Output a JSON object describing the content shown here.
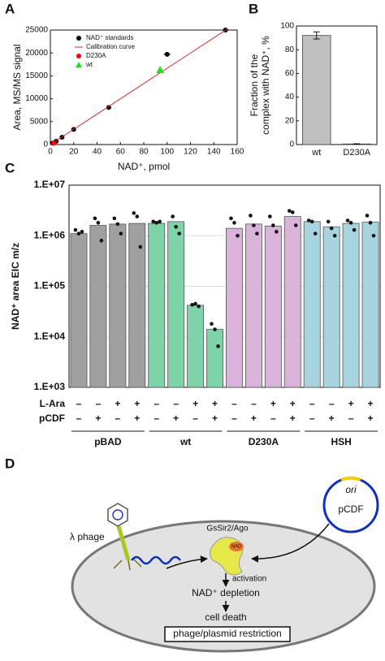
{
  "panels": [
    "A",
    "B",
    "C",
    "D"
  ],
  "chart_data": [
    {
      "type": "scatter",
      "xlabel": "NAD⁺, pmol",
      "ylabel": "Area, MS/MS signal",
      "xlim": [
        0,
        160
      ],
      "xticks": [
        0,
        20,
        40,
        60,
        80,
        100,
        120,
        140,
        160
      ],
      "ylim": [
        0,
        25000
      ],
      "yticks": [
        0,
        5000,
        10000,
        15000,
        20000,
        25000
      ],
      "legend": "upper left",
      "series": [
        {
          "name": "NAD⁺ standards",
          "color": "#000000",
          "marker": "circle",
          "x": [
            2,
            5,
            10,
            20,
            50,
            100,
            150
          ],
          "values": [
            300,
            700,
            1600,
            3300,
            8100,
            19700,
            25000
          ],
          "xerr": [
            0.5,
            0.5,
            1,
            2,
            2,
            3,
            4
          ]
        },
        {
          "name": "Calibration curve",
          "color": "#d62728",
          "type": "line",
          "x": [
            0,
            152
          ],
          "values": [
            0,
            25300
          ]
        },
        {
          "name": "D230A",
          "color": "#ff0000",
          "marker": "circle",
          "x": [
            3
          ],
          "values": [
            300
          ]
        },
        {
          "name": "wt",
          "color": "#22dd22",
          "marker": "triangle",
          "x": [
            94
          ],
          "values": [
            16300
          ]
        }
      ]
    },
    {
      "type": "bar",
      "ylabel": [
        "Fraction of the",
        "complex with NAD⁺, %"
      ],
      "categories": [
        "wt",
        "D230A"
      ],
      "values": [
        92,
        0.5
      ],
      "errors": [
        3,
        0.2
      ],
      "color": "#c0c0c0",
      "ylim": [
        0,
        100
      ],
      "yticks": [
        0,
        20,
        40,
        60,
        80,
        100
      ]
    },
    {
      "type": "grouped-log-bar",
      "ylabel": "NAD⁺ area EIC m/z",
      "log_scale": true,
      "grid": true,
      "ylim": [
        1000,
        10000000
      ],
      "yticks": [
        {
          "value": 1000,
          "label": "1.E+03"
        },
        {
          "value": 10000,
          "label": "1.E+04"
        },
        {
          "value": 100000,
          "label": "1.E+05"
        },
        {
          "value": 1000000,
          "label": "1.E+06"
        },
        {
          "value": 10000000,
          "label": "1.E+07"
        }
      ],
      "rows": [
        {
          "name": "L-Ara",
          "signs": [
            "–",
            "–",
            "+",
            "+",
            "–",
            "–",
            "+",
            "+",
            "–",
            "–",
            "+",
            "+",
            "–",
            "–",
            "+",
            "+"
          ]
        },
        {
          "name": "pCDF",
          "signs": [
            "–",
            "+",
            "–",
            "+",
            "–",
            "+",
            "–",
            "+",
            "–",
            "+",
            "–",
            "+",
            "–",
            "+",
            "–",
            "+"
          ]
        }
      ],
      "groups": [
        {
          "name": "pBAD",
          "color": "#a0a0a0",
          "values": [
            1100000,
            1600000,
            1700000,
            1750000
          ],
          "replicates": [
            [
              1300000,
              1100000,
              1200000
            ],
            [
              2200000,
              1800000,
              800000
            ],
            [
              2200000,
              1700000,
              1100000
            ],
            [
              2800000,
              2400000,
              600000
            ]
          ]
        },
        {
          "name": "wt",
          "color": "#7fd3a8",
          "values": [
            1750000,
            1900000,
            42000,
            14000
          ],
          "replicates": [
            [
              1900000,
              1800000,
              1900000
            ],
            [
              2400000,
              1500000,
              1100000
            ],
            [
              43000,
              45000,
              40000
            ],
            [
              18000,
              14000,
              6500
            ]
          ]
        },
        {
          "name": "D230A",
          "color": "#d9b3d9",
          "values": [
            1400000,
            1700000,
            1550000,
            2400000
          ],
          "replicates": [
            [
              2200000,
              1800000,
              1000000
            ],
            [
              2500000,
              1600000,
              1100000
            ],
            [
              2400000,
              1600000,
              1200000
            ],
            [
              3100000,
              2900000,
              1600000
            ]
          ]
        },
        {
          "name": "HSH",
          "color": "#a8d4e0",
          "values": [
            1900000,
            1500000,
            1750000,
            1850000
          ],
          "replicates": [
            [
              2000000,
              1900000,
              1100000
            ],
            [
              1900000,
              1400000,
              1000000
            ],
            [
              2000000,
              1800000,
              1300000
            ],
            [
              2500000,
              1800000,
              1000000
            ]
          ]
        }
      ]
    }
  ],
  "diagram": {
    "phage": "λ phage",
    "protein": "GsSir2/Ago",
    "bound": "NAD",
    "ori": "ori",
    "plasmid": "pCDF",
    "activation": "activation",
    "depletion": "NAD⁺ depletion",
    "death": "cell death",
    "restriction": "phage/plasmid restriction"
  }
}
